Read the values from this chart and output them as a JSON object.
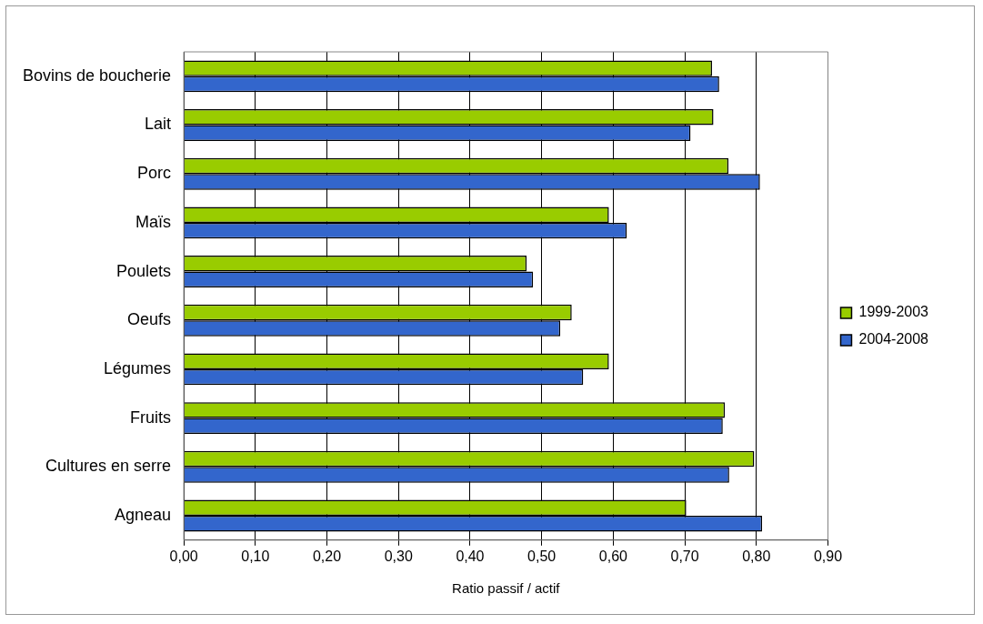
{
  "chart_data": {
    "type": "bar",
    "orientation": "horizontal",
    "xlabel": "Ratio passif / actif",
    "categories": [
      "Bovins de boucherie",
      "Lait",
      "Porc",
      "Maïs",
      "Poulets",
      "Oeufs",
      "Légumes",
      "Fruits",
      "Cultures en serre",
      "Agneau"
    ],
    "series": [
      {
        "name": "1999-2003",
        "color": "#99cc00",
        "values": [
          0.738,
          0.74,
          0.761,
          0.594,
          0.479,
          0.542,
          0.594,
          0.756,
          0.797,
          0.702
        ]
      },
      {
        "name": "2004-2008",
        "color": "#3366cc",
        "values": [
          0.748,
          0.708,
          0.805,
          0.619,
          0.488,
          0.526,
          0.558,
          0.753,
          0.762,
          0.808
        ]
      }
    ],
    "xlim": [
      0,
      0.9
    ],
    "xticks": [
      {
        "value": 0,
        "label": "0,00"
      },
      {
        "value": 0.1,
        "label": "0,10"
      },
      {
        "value": 0.2,
        "label": "0,20"
      },
      {
        "value": 0.3,
        "label": "0,30"
      },
      {
        "value": 0.4,
        "label": "0,40"
      },
      {
        "value": 0.5,
        "label": "0,50"
      },
      {
        "value": 0.6,
        "label": "0,60"
      },
      {
        "value": 0.7,
        "label": "0,70"
      },
      {
        "value": 0.8,
        "label": "0,80"
      },
      {
        "value": 0.9,
        "label": "0,90"
      }
    ],
    "grid": "x",
    "legend": "right"
  }
}
